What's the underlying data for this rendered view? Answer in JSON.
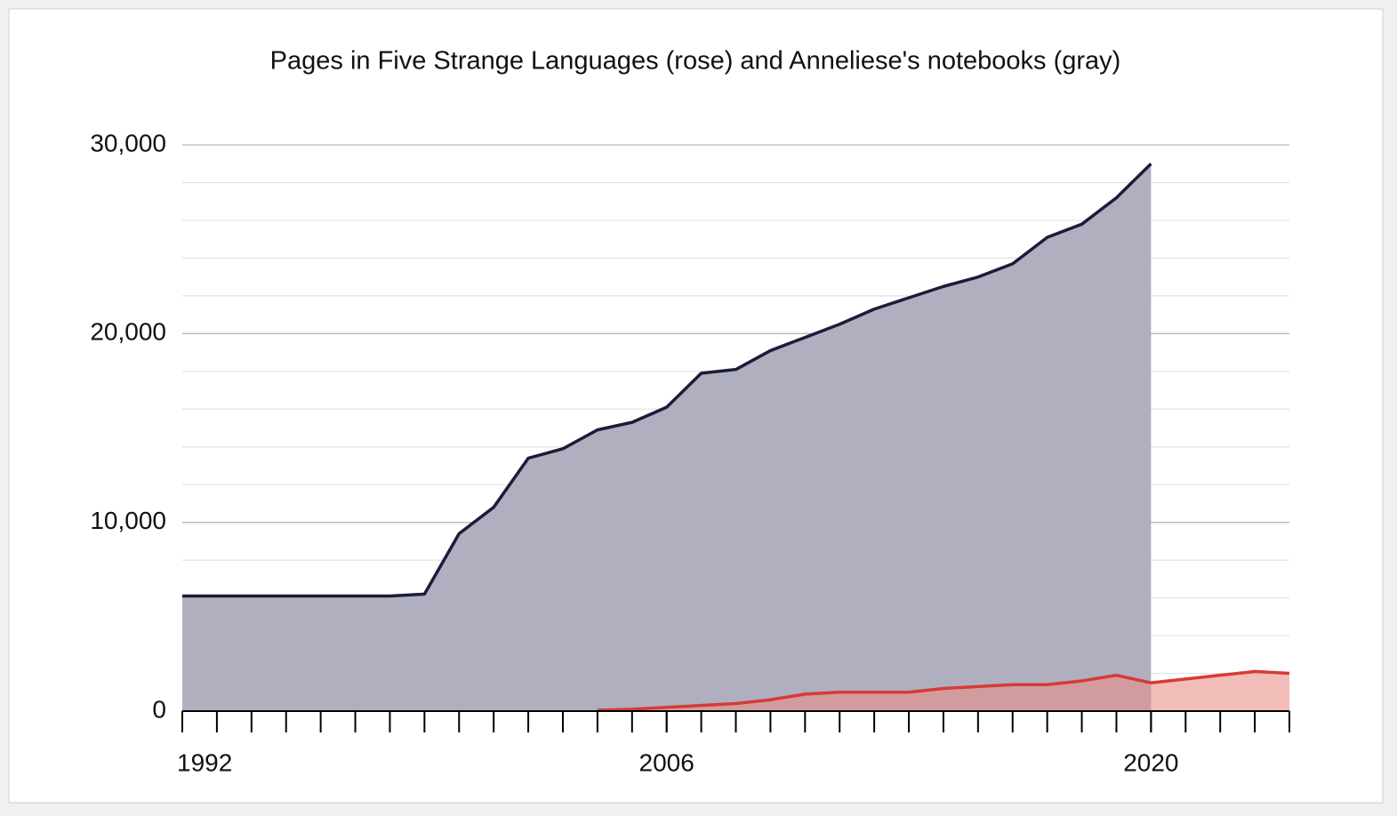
{
  "chart_data": {
    "type": "area",
    "title": "Pages in Five Strange Languages (rose) and Anneliese's notebooks (gray)",
    "x": [
      1992,
      1993,
      1994,
      1995,
      1996,
      1997,
      1998,
      1999,
      2000,
      2001,
      2002,
      2003,
      2004,
      2005,
      2006,
      2007,
      2008,
      2009,
      2010,
      2011,
      2012,
      2013,
      2014,
      2015,
      2016,
      2017,
      2018,
      2019,
      2020,
      2021,
      2022,
      2023,
      2024
    ],
    "series": [
      {
        "color": "#1c1c3a",
        "fill": "#b0afbf",
        "values": [
          6100,
          6100,
          6100,
          6100,
          6100,
          6100,
          6100,
          6200,
          9400,
          10800,
          13400,
          13900,
          14900,
          15300,
          16100,
          17900,
          18100,
          19100,
          19800,
          20500,
          21300,
          21900,
          22500,
          23000,
          23700,
          25100,
          25800,
          27200,
          29000,
          null,
          null,
          null,
          null
        ]
      },
      {
        "color": "#d63b35",
        "fill": "#ea8f88",
        "values": [
          null,
          null,
          null,
          null,
          null,
          null,
          null,
          null,
          null,
          null,
          null,
          null,
          50,
          100,
          200,
          300,
          400,
          600,
          900,
          1000,
          1000,
          1000,
          1200,
          1300,
          1400,
          1400,
          1600,
          1900,
          1500,
          1700,
          1900,
          2100,
          2000
        ]
      }
    ],
    "xlim": [
      1992,
      2024
    ],
    "xticks": [
      1992,
      2006,
      2020
    ],
    "ylim": [
      0,
      30000
    ],
    "yticks": [
      0,
      {
        "value": 10000,
        "label": "10,000"
      },
      {
        "value": 20000,
        "label": "20,000"
      },
      {
        "value": 30000,
        "label": "30,000"
      }
    ],
    "grid": true
  }
}
